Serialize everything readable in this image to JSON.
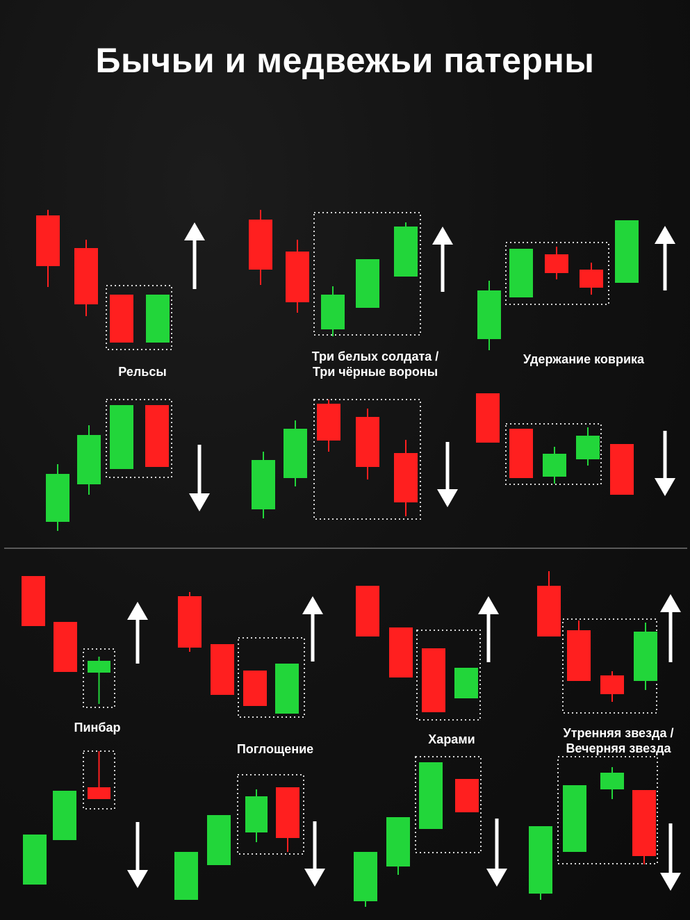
{
  "title": "Бычьи и медвежьи патерны",
  "colors": {
    "bull": "#22d63a",
    "bear": "#ff1f1f",
    "box": "#d8d8d8",
    "arrow": "#ffffff",
    "background": "#121212"
  },
  "patterns": [
    {
      "name": "Рельсы"
    },
    {
      "name_lines": [
        "Три белых солдата /",
        "Три чёрные вороны"
      ]
    },
    {
      "name": "Удержание коврика"
    },
    {
      "name": "Пинбар"
    },
    {
      "name": "Поглощение"
    },
    {
      "name": "Харами"
    },
    {
      "name_lines": [
        "Утренняя звезда /",
        "Вечерняя звезда"
      ]
    }
  ]
}
